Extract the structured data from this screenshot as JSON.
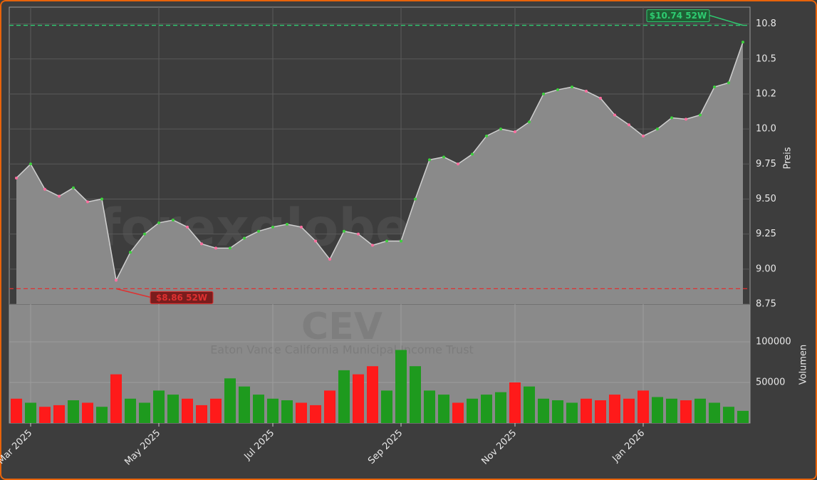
{
  "chart_data": [
    {
      "type": "area",
      "watermark": "forexglobe.trade",
      "symbol": "CEV",
      "subtitle": "Eaton Vance California Municipal Income Trust",
      "categories": [
        null,
        "Mar 2025",
        null,
        null,
        null,
        null,
        null,
        null,
        null,
        null,
        "May 2025",
        null,
        null,
        null,
        null,
        null,
        null,
        null,
        "Jul 2025",
        null,
        null,
        null,
        null,
        null,
        null,
        null,
        null,
        "Sep 2025",
        null,
        null,
        null,
        null,
        null,
        null,
        null,
        "Nov 2025",
        null,
        null,
        null,
        null,
        null,
        null,
        null,
        null,
        "Jan 2026",
        null,
        null,
        null,
        null,
        null,
        null,
        null
      ],
      "values": [
        9.65,
        9.75,
        9.57,
        9.52,
        9.58,
        9.48,
        9.5,
        8.92,
        9.12,
        9.25,
        9.33,
        9.35,
        9.3,
        9.18,
        9.15,
        9.15,
        9.22,
        9.27,
        9.3,
        9.32,
        9.3,
        9.2,
        9.07,
        9.27,
        9.25,
        9.17,
        9.2,
        9.2,
        9.5,
        9.78,
        9.8,
        9.75,
        9.82,
        9.95,
        10.0,
        9.98,
        10.05,
        10.25,
        10.28,
        10.3,
        10.27,
        10.22,
        10.1,
        10.03,
        9.95,
        10.0,
        10.08,
        10.07,
        10.1,
        10.3,
        10.33,
        10.62
      ],
      "color": "#8a8a8a",
      "line_color": "#d0d0d0",
      "ylim": [
        8.75,
        10.87
      ],
      "yticks": [
        8.75,
        {
          "value": 9,
          "label": "9.00"
        },
        9.25,
        {
          "value": 9.5,
          "label": "9.50"
        },
        9.75,
        {
          "value": 10,
          "label": "10.0"
        },
        {
          "value": 10.25,
          "label": "10.2"
        },
        10.5,
        {
          "value": 10.75,
          "label": "10.8"
        }
      ],
      "ylabel": "Preis",
      "grid": true,
      "annotations": [
        {
          "label": "$10.74 52W",
          "value": 10.74,
          "color": "#2ecc71"
        },
        {
          "label": "$8.86 52W",
          "value": 8.86,
          "color": "#e03030"
        }
      ]
    },
    {
      "type": "bar",
      "values": [
        30000,
        25000,
        20000,
        22000,
        28000,
        25000,
        20000,
        60000,
        30000,
        25000,
        40000,
        35000,
        30000,
        22000,
        30000,
        55000,
        45000,
        35000,
        30000,
        28000,
        25000,
        22000,
        40000,
        65000,
        60000,
        70000,
        40000,
        90000,
        70000,
        40000,
        35000,
        25000,
        30000,
        35000,
        38000,
        50000,
        45000,
        30000,
        28000,
        25000,
        30000,
        28000,
        35000,
        30000,
        40000,
        32000,
        30000,
        28000,
        30000,
        25000,
        20000,
        15000
      ],
      "up_color": "#1e9a1e",
      "down_color": "#ff1a1a",
      "ylim": [
        0,
        146500
      ],
      "yticks": [
        50000,
        100000
      ],
      "ylabel": "Volumen",
      "grid": true
    }
  ]
}
